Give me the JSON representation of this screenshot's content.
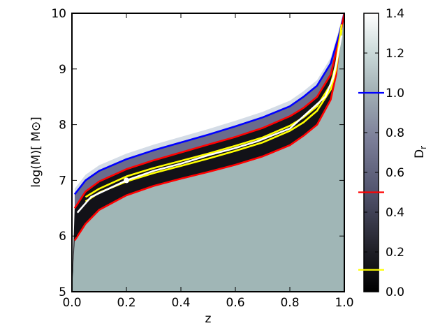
{
  "chart_data": {
    "type": "heatmap",
    "xlabel": "z",
    "ylabel": "log(M)[ M⊙]",
    "xlim": [
      0.0,
      1.0
    ],
    "ylim": [
      5,
      10
    ],
    "x_ticks": [
      "0.0",
      "0.2",
      "0.4",
      "0.6",
      "0.8",
      "1.0"
    ],
    "y_ticks": [
      "5",
      "6",
      "7",
      "8",
      "9",
      "10"
    ],
    "colorbar": {
      "label": "D",
      "label_subscript": "r",
      "range": [
        0.0,
        1.4
      ],
      "ticks": [
        "0.0",
        "0.2",
        "0.4",
        "0.6",
        "0.8",
        "1.0",
        "1.2",
        "1.4"
      ],
      "markers": [
        {
          "value": 1.0,
          "color": "#0000ff"
        },
        {
          "value": 0.5,
          "color": "#ff0000"
        },
        {
          "value": 0.11,
          "color": "#ffff00"
        }
      ],
      "colors": {
        "low": "#000000",
        "mid": "#5c5e80",
        "high": "#ffffff"
      }
    },
    "background_value": 0.55,
    "series": [
      {
        "color": "#0000ff",
        "x": [
          0.01,
          0.05,
          0.1,
          0.2,
          0.3,
          0.4,
          0.5,
          0.6,
          0.7,
          0.8,
          0.85,
          0.9,
          0.95,
          0.98,
          1.0
        ],
        "y": [
          6.75,
          7.0,
          7.17,
          7.38,
          7.54,
          7.68,
          7.82,
          7.97,
          8.13,
          8.33,
          8.5,
          8.7,
          9.1,
          9.6,
          10.0
        ]
      },
      {
        "color": "#ff0000",
        "x": [
          0.01,
          0.05,
          0.1,
          0.2,
          0.3,
          0.4,
          0.5,
          0.6,
          0.7,
          0.8,
          0.85,
          0.9,
          0.95,
          0.98,
          1.0
        ],
        "y": [
          6.5,
          6.8,
          6.98,
          7.2,
          7.36,
          7.5,
          7.64,
          7.78,
          7.94,
          8.15,
          8.3,
          8.5,
          8.9,
          9.5,
          10.0
        ]
      },
      {
        "color": "#ff0000",
        "x": [
          0.01,
          0.05,
          0.1,
          0.2,
          0.3,
          0.4,
          0.5,
          0.6,
          0.7,
          0.8,
          0.85,
          0.9,
          0.95,
          0.97,
          0.99
        ],
        "y": [
          5.92,
          6.22,
          6.47,
          6.73,
          6.9,
          7.03,
          7.15,
          7.28,
          7.43,
          7.63,
          7.8,
          8.0,
          8.45,
          8.9,
          9.8
        ]
      },
      {
        "color": "#ffff00",
        "x": [
          0.05,
          0.1,
          0.2,
          0.3,
          0.4,
          0.5,
          0.6,
          0.7,
          0.8,
          0.85,
          0.9,
          0.95,
          0.97,
          0.99
        ],
        "y": [
          6.7,
          6.85,
          7.07,
          7.22,
          7.35,
          7.48,
          7.62,
          7.77,
          7.98,
          8.13,
          8.33,
          8.72,
          9.1,
          9.8
        ]
      },
      {
        "color": "#ffff00",
        "x": [
          0.05,
          0.1,
          0.2,
          0.3,
          0.4,
          0.5,
          0.6,
          0.7,
          0.8,
          0.85,
          0.9,
          0.95,
          0.97,
          0.99
        ],
        "y": [
          6.62,
          6.78,
          6.98,
          7.13,
          7.26,
          7.39,
          7.53,
          7.68,
          7.89,
          8.04,
          8.25,
          8.63,
          9.0,
          9.7
        ]
      },
      {
        "color": "#ffffff",
        "x": [
          0.02,
          0.07,
          0.2,
          0.3,
          0.4,
          0.5,
          0.6,
          0.68,
          0.8,
          0.93,
          0.96,
          0.99
        ],
        "y": [
          6.42,
          6.7,
          7.0,
          7.17,
          7.3,
          7.45,
          7.58,
          7.7,
          7.93,
          8.5,
          8.85,
          9.6
        ]
      }
    ]
  }
}
